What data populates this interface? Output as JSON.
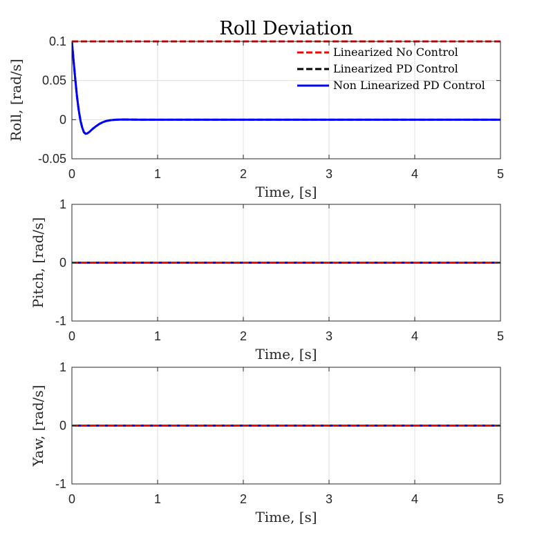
{
  "chart_data": [
    {
      "type": "line",
      "title": "Roll Deviation",
      "xlabel": "Time, [s]",
      "ylabel": "Roll, [rad/s]",
      "xlim": [
        0,
        5
      ],
      "ylim": [
        -0.05,
        0.1
      ],
      "xticks": [
        0,
        1,
        2,
        3,
        4,
        5
      ],
      "yticks": [
        -0.05,
        0,
        0.05,
        0.1
      ],
      "xtick_labels": [
        "0",
        "1",
        "2",
        "3",
        "4",
        "5"
      ],
      "ytick_labels": [
        "-0.05",
        "0",
        "0.05",
        "0.1"
      ],
      "grid": true,
      "legend": "top-right",
      "series": [
        {
          "name": "Linearized No Control",
          "color": "#ff0000",
          "dash": "dashed",
          "x": [
            0,
            5
          ],
          "y": [
            0.1,
            0.1
          ]
        },
        {
          "name": "Linearized PD Control",
          "color": "#000000",
          "dash": "dashed",
          "x": [
            0,
            0.02,
            0.04,
            0.06,
            0.08,
            0.1,
            0.12,
            0.14,
            0.16,
            0.18,
            0.2,
            0.24,
            0.28,
            0.32,
            0.36,
            0.4,
            0.45,
            0.5,
            0.55,
            0.6,
            0.7,
            0.8,
            1,
            2,
            3,
            4,
            5
          ],
          "y": [
            0.1,
            0.075,
            0.051,
            0.029,
            0.012,
            -0.001,
            -0.01,
            -0.016,
            -0.018,
            -0.0175,
            -0.016,
            -0.012,
            -0.0085,
            -0.0055,
            -0.0033,
            -0.0017,
            -0.0007,
            -0.0002,
            0.0001,
            0.0002,
            0.0001,
            0,
            0,
            0,
            0,
            0,
            0
          ]
        },
        {
          "name": "Non Linearized PD Control",
          "color": "#0000ff",
          "dash": "solid",
          "x": [
            0,
            0.02,
            0.04,
            0.06,
            0.08,
            0.1,
            0.12,
            0.14,
            0.16,
            0.18,
            0.2,
            0.24,
            0.28,
            0.32,
            0.36,
            0.4,
            0.45,
            0.5,
            0.55,
            0.6,
            0.7,
            0.8,
            1,
            2,
            3,
            4,
            5
          ],
          "y": [
            0.1,
            0.075,
            0.051,
            0.029,
            0.012,
            -0.001,
            -0.01,
            -0.016,
            -0.018,
            -0.0175,
            -0.016,
            -0.012,
            -0.0085,
            -0.0055,
            -0.0033,
            -0.0017,
            -0.0007,
            -0.0002,
            0.0001,
            0.0002,
            0.0001,
            0,
            0,
            0,
            0,
            0,
            0
          ]
        }
      ]
    },
    {
      "type": "line",
      "title": "",
      "xlabel": "Time, [s]",
      "ylabel": "Pitch, [rad/s]",
      "xlim": [
        0,
        5
      ],
      "ylim": [
        -1,
        1
      ],
      "xticks": [
        0,
        1,
        2,
        3,
        4,
        5
      ],
      "yticks": [
        -1,
        0,
        1
      ],
      "xtick_labels": [
        "0",
        "1",
        "2",
        "3",
        "4",
        "5"
      ],
      "ytick_labels": [
        "-1",
        "0",
        "1"
      ],
      "grid": true,
      "series": [
        {
          "color": "#ff0000",
          "dash": "dashed",
          "x": [
            0,
            5
          ],
          "y": [
            0,
            0
          ]
        },
        {
          "color": "#000000",
          "dash": "dashed",
          "x": [
            0,
            5
          ],
          "y": [
            0,
            0
          ]
        },
        {
          "color": "#0000ff",
          "dash": "solid",
          "x": [
            0,
            5
          ],
          "y": [
            0,
            0
          ]
        }
      ]
    },
    {
      "type": "line",
      "title": "",
      "xlabel": "Time, [s]",
      "ylabel": "Yaw, [rad/s]",
      "xlim": [
        0,
        5
      ],
      "ylim": [
        -1,
        1
      ],
      "xticks": [
        0,
        1,
        2,
        3,
        4,
        5
      ],
      "yticks": [
        -1,
        0,
        1
      ],
      "xtick_labels": [
        "0",
        "1",
        "2",
        "3",
        "4",
        "5"
      ],
      "ytick_labels": [
        "-1",
        "0",
        "1"
      ],
      "grid": true,
      "series": [
        {
          "color": "#ff0000",
          "dash": "dashed",
          "x": [
            0,
            5
          ],
          "y": [
            0,
            0
          ]
        },
        {
          "color": "#000000",
          "dash": "dashed",
          "x": [
            0,
            5
          ],
          "y": [
            0,
            0
          ]
        },
        {
          "color": "#0000ff",
          "dash": "solid",
          "x": [
            0,
            5
          ],
          "y": [
            0,
            0
          ]
        }
      ]
    }
  ]
}
